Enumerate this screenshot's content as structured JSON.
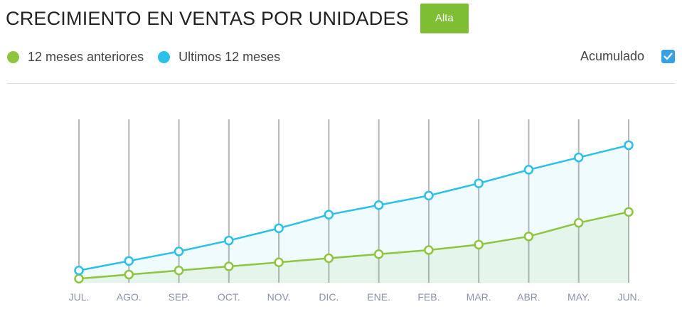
{
  "header": {
    "title": "CRECIMIENTO EN VENTAS POR UNIDADES",
    "badge": "Alta"
  },
  "legend": {
    "previous_label": "12 meses anteriores",
    "last_label": "Ultimos 12 meses",
    "cumulative_label": "Acumulado",
    "cumulative_checked": true
  },
  "colors": {
    "previous": "#8cc63f",
    "last": "#29c0ea",
    "badge": "#7dbe32",
    "checkbox": "#3aa0e6",
    "gridline": "#b5b5b5"
  },
  "chart_data": {
    "type": "area",
    "categories": [
      "JUL.",
      "AGO.",
      "SEP.",
      "OCT.",
      "NOV.",
      "DIC.",
      "ENE.",
      "FEB.",
      "MAR.",
      "ABR.",
      "MAY.",
      "JUN."
    ],
    "series": [
      {
        "name": "12 meses anteriores",
        "values": [
          3,
          6,
          9,
          12,
          15,
          18,
          21,
          24,
          28,
          34,
          44,
          52
        ]
      },
      {
        "name": "Ultimos 12 meses",
        "values": [
          9,
          16,
          23,
          31,
          40,
          50,
          57,
          64,
          73,
          83,
          92,
          101
        ]
      }
    ],
    "ylim": [
      0,
      120
    ],
    "grid": true,
    "cumulative": true
  }
}
